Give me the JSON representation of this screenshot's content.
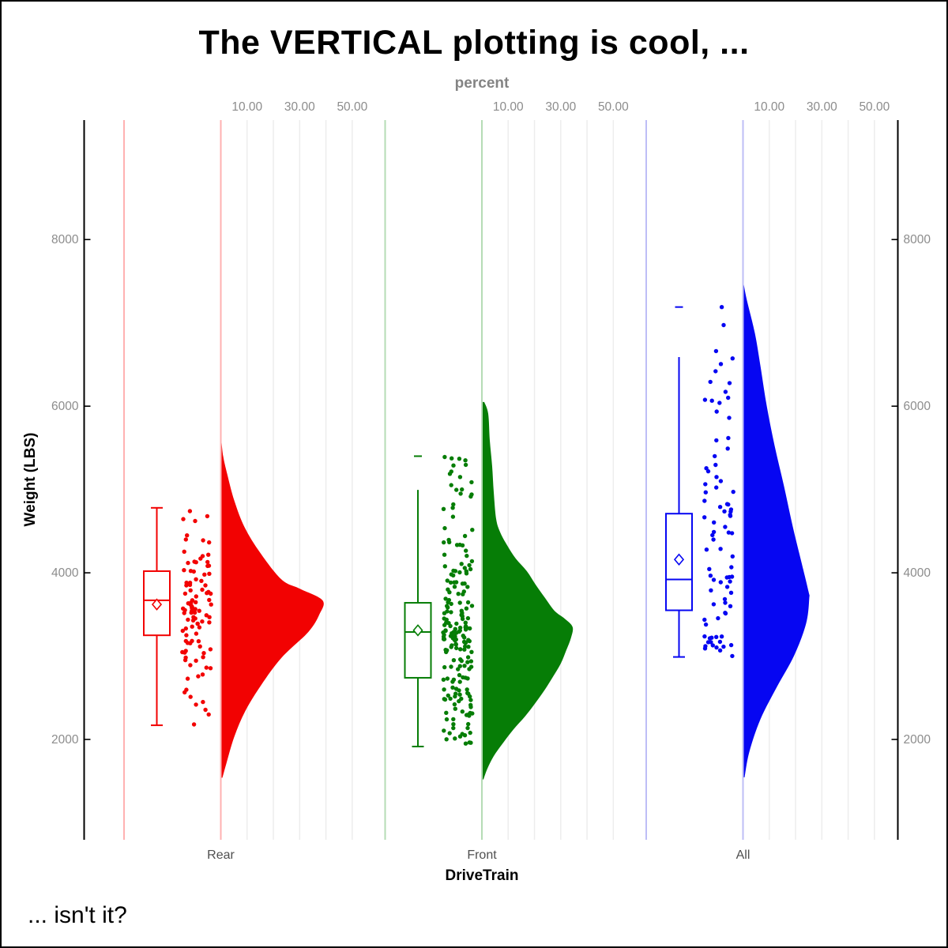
{
  "title": "The VERTICAL plotting is cool, ...",
  "footnote": "... isn't it?",
  "chart_data": {
    "type": "raincloud (half-violin density + box plot + jittered points), vertical orientation",
    "x_axis": {
      "label": "DriveTrain",
      "categories": [
        "Rear",
        "Front",
        "All"
      ]
    },
    "y_axis": {
      "label": "Weight (LBS)",
      "ticks": [
        {
          "value": 2000,
          "label": "2000"
        },
        {
          "value": 4000,
          "label": "4000"
        },
        {
          "value": 6000,
          "label": "6000"
        },
        {
          "value": 8000,
          "label": "8000"
        }
      ],
      "range": [
        1350,
        9450
      ],
      "mirrored_right": true
    },
    "top_axis": {
      "label": "percent",
      "labeled_ticks": [
        {
          "value": 10,
          "label": "10.00"
        },
        {
          "value": 30,
          "label": "30.00"
        },
        {
          "value": 50,
          "label": "50.00"
        }
      ],
      "gridline_values": [
        10,
        20,
        30,
        40,
        50
      ],
      "repeats_per_category": true
    },
    "groups": [
      {
        "name": "Rear",
        "color": "#f20202",
        "light_color": "#ffb2b2",
        "n_points": 100,
        "box": {
          "whisker_low": 2170,
          "q1": 3250,
          "median": 3670,
          "mean": 3620,
          "q3": 4020,
          "whisker_high": 4780,
          "top_cap": true,
          "bottom_cap": true
        },
        "outliers": [],
        "points_range": [
          2170,
          4780
        ],
        "extra_points": [
          4740,
          4680,
          2300,
          2180
        ],
        "density": [
          [
            1540,
            0.6
          ],
          [
            1710,
            2.1
          ],
          [
            2030,
            5.1
          ],
          [
            2340,
            9.3
          ],
          [
            2650,
            15.3
          ],
          [
            2980,
            23.1
          ],
          [
            3290,
            33.3
          ],
          [
            3500,
            37.5
          ],
          [
            3670,
            38.7
          ],
          [
            3810,
            30.0
          ],
          [
            3920,
            23.1
          ],
          [
            4240,
            15.0
          ],
          [
            4550,
            9.0
          ],
          [
            4870,
            5.1
          ],
          [
            5190,
            2.4
          ],
          [
            5400,
            0.9
          ],
          [
            5600,
            0.2
          ]
        ]
      },
      {
        "name": "Front",
        "color": "#067d06",
        "light_color": "#b5dcb5",
        "n_points": 205,
        "box": {
          "whisker_low": 1915,
          "q1": 2740,
          "median": 3290,
          "mean": 3310,
          "q3": 3640,
          "whisker_high": 4995,
          "top_cap": false,
          "bottom_cap": true
        },
        "outliers": [
          5400
        ],
        "points_range": [
          1915,
          5400
        ],
        "extra_points": [
          5390,
          5350,
          5150,
          5000,
          4940,
          1960
        ],
        "density": [
          [
            1520,
            0.6
          ],
          [
            1650,
            2.1
          ],
          [
            1800,
            4.5
          ],
          [
            1960,
            8.1
          ],
          [
            2120,
            12.0
          ],
          [
            2280,
            16.5
          ],
          [
            2440,
            20.4
          ],
          [
            2600,
            24.0
          ],
          [
            2750,
            27.0
          ],
          [
            2910,
            30.0
          ],
          [
            3070,
            32.1
          ],
          [
            3220,
            33.9
          ],
          [
            3350,
            34.5
          ],
          [
            3450,
            31.5
          ],
          [
            3545,
            27.6
          ],
          [
            3700,
            24.0
          ],
          [
            3860,
            20.4
          ],
          [
            4020,
            17.1
          ],
          [
            4170,
            12.9
          ],
          [
            4330,
            9.6
          ],
          [
            4490,
            6.9
          ],
          [
            4650,
            5.4
          ],
          [
            4970,
            4.5
          ],
          [
            5280,
            3.9
          ],
          [
            5590,
            3.0
          ],
          [
            5910,
            2.4
          ],
          [
            6050,
            0.9
          ]
        ]
      },
      {
        "name": "All",
        "color": "#0606f2",
        "light_color": "#bebef6",
        "n_points": 85,
        "box": {
          "whisker_low": 2990,
          "q1": 3550,
          "median": 3920,
          "mean": 4160,
          "q3": 4710,
          "whisker_high": 6590,
          "top_cap": false,
          "bottom_cap": true
        },
        "outliers": [
          7190
        ],
        "points_range": [
          2990,
          7190
        ],
        "extra_points": [
          7190,
          6420,
          5860,
          5590,
          5400,
          5150
        ],
        "density": [
          [
            1545,
            0.6
          ],
          [
            1850,
            2.4
          ],
          [
            2240,
            6.6
          ],
          [
            2630,
            12.9
          ],
          [
            3010,
            19.5
          ],
          [
            3390,
            24.0
          ],
          [
            3690,
            25.2
          ],
          [
            3780,
            24.9
          ],
          [
            4170,
            21.9
          ],
          [
            4560,
            18.9
          ],
          [
            5040,
            15.6
          ],
          [
            5530,
            12.0
          ],
          [
            6010,
            9.0
          ],
          [
            6490,
            6.6
          ],
          [
            6880,
            4.5
          ],
          [
            7270,
            1.5
          ],
          [
            7460,
            0.3
          ]
        ]
      }
    ]
  }
}
